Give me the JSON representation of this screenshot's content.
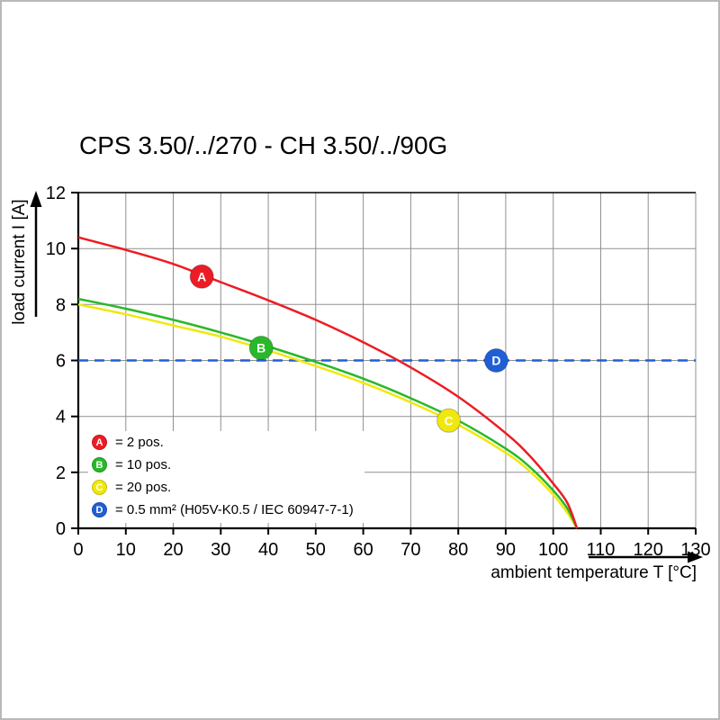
{
  "page": {
    "title": "CPS 3.50/../270 - CH 3.50/../90G"
  },
  "chart_data": {
    "type": "line",
    "title": "CPS 3.50/../270 - CH 3.50/../90G",
    "xlabel": "ambient temperature T [°C]",
    "ylabel": "load current I [A]",
    "xlim": [
      0,
      130
    ],
    "ylim": [
      0,
      12
    ],
    "x_ticks": [
      0,
      10,
      20,
      30,
      40,
      50,
      60,
      70,
      80,
      90,
      100,
      110,
      120,
      130
    ],
    "y_ticks": [
      0,
      2,
      4,
      6,
      8,
      10,
      12
    ],
    "grid": true,
    "grid_color": "#909090",
    "axis_color": "#000000",
    "legend_position": "lower-left-inside",
    "series": [
      {
        "id": "A",
        "name": "2 pos.",
        "color": "#ed1c24",
        "style": "solid",
        "marker": {
          "x": 26,
          "y": 9.0
        },
        "points": [
          [
            0,
            10.4
          ],
          [
            10,
            9.95
          ],
          [
            20,
            9.45
          ],
          [
            30,
            8.8
          ],
          [
            40,
            8.15
          ],
          [
            50,
            7.45
          ],
          [
            60,
            6.65
          ],
          [
            70,
            5.75
          ],
          [
            80,
            4.7
          ],
          [
            90,
            3.4
          ],
          [
            95,
            2.6
          ],
          [
            100,
            1.6
          ],
          [
            103,
            0.9
          ],
          [
            105,
            0
          ]
        ]
      },
      {
        "id": "B",
        "name": "10 pos.",
        "color": "#29b829",
        "style": "solid",
        "marker": {
          "x": 38.5,
          "y": 6.45
        },
        "points": [
          [
            0,
            8.2
          ],
          [
            10,
            7.85
          ],
          [
            20,
            7.45
          ],
          [
            30,
            7.0
          ],
          [
            40,
            6.5
          ],
          [
            50,
            5.95
          ],
          [
            60,
            5.35
          ],
          [
            70,
            4.65
          ],
          [
            80,
            3.85
          ],
          [
            90,
            2.85
          ],
          [
            95,
            2.2
          ],
          [
            100,
            1.35
          ],
          [
            103,
            0.7
          ],
          [
            105,
            0
          ]
        ]
      },
      {
        "id": "C",
        "name": "20 pos.",
        "color": "#f0e80c",
        "style": "solid",
        "marker": {
          "x": 78,
          "y": 3.85
        },
        "points": [
          [
            0,
            8.0
          ],
          [
            10,
            7.65
          ],
          [
            20,
            7.25
          ],
          [
            30,
            6.85
          ],
          [
            40,
            6.35
          ],
          [
            50,
            5.8
          ],
          [
            60,
            5.2
          ],
          [
            70,
            4.5
          ],
          [
            80,
            3.7
          ],
          [
            90,
            2.7
          ],
          [
            95,
            2.05
          ],
          [
            100,
            1.2
          ],
          [
            103,
            0.55
          ],
          [
            105,
            0
          ]
        ]
      },
      {
        "id": "D",
        "name": "0.5 mm² (H05V-K0.5 / IEC 60947-7-1)",
        "color": "#1f5fd6",
        "style": "dashed",
        "marker": {
          "x": 88,
          "y": 6.0
        },
        "points": [
          [
            0,
            6
          ],
          [
            130,
            6
          ]
        ]
      }
    ],
    "legend": [
      {
        "id": "A",
        "color": "#ed1c24",
        "label": "= 2 pos."
      },
      {
        "id": "B",
        "color": "#29b829",
        "label": "= 10 pos."
      },
      {
        "id": "C",
        "color": "#f0e80c",
        "label": "= 20 pos."
      },
      {
        "id": "D",
        "color": "#1f5fd6",
        "label": "= 0.5 mm² (H05V-K0.5 / IEC 60947-7-1)"
      }
    ]
  }
}
